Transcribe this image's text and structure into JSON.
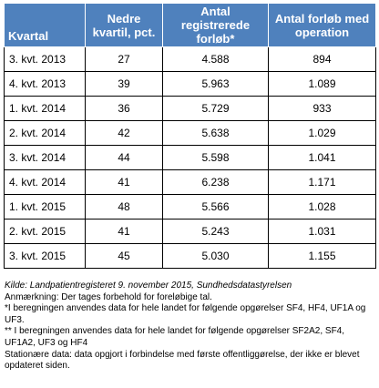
{
  "table": {
    "headers": [
      "Kvartal",
      "Nedre kvartil, pct.",
      "Antal registrerede forløb*",
      "Antal forløb med operation"
    ],
    "rows": [
      [
        "3. kvt. 2013",
        "27",
        "4.588",
        "894"
      ],
      [
        "4. kvt. 2013",
        "39",
        "5.963",
        "1.089"
      ],
      [
        "1. kvt. 2014",
        "36",
        "5.729",
        "933"
      ],
      [
        "2. kvt. 2014",
        "42",
        "5.638",
        "1.029"
      ],
      [
        "3. kvt. 2014",
        "44",
        "5.598",
        "1.041"
      ],
      [
        "4. kvt. 2014",
        "41",
        "6.238",
        "1.171"
      ],
      [
        "1. kvt. 2015",
        "48",
        "5.566",
        "1.028"
      ],
      [
        "2. kvt. 2015",
        "41",
        "5.243",
        "1.031"
      ],
      [
        "3. kvt. 2015",
        "45",
        "5.030",
        "1.155"
      ]
    ]
  },
  "notes": {
    "source": "Kilde: Landpatientregisteret 9. november 2015, Sundhedsdatastyrelsen",
    "remark": "Anmærkning: Der tages forbehold for foreløbige tal.",
    "footnote1": "*I beregningen anvendes data for hele landet for følgende opgørelser SF4, HF4, UF1A og UF3.",
    "footnote2": "** I beregningen anvendes data for hele landet for følgende opgørelser SF2A2, SF4, UF1A2, UF3 og HF4",
    "stationary": "Stationære data: data opgjort i forbindelse med første offentliggørelse, der ikke er blevet opdateret siden."
  },
  "colors": {
    "header_bg": "#4f81bd",
    "header_text": "#ffffff",
    "border": "#000000"
  }
}
